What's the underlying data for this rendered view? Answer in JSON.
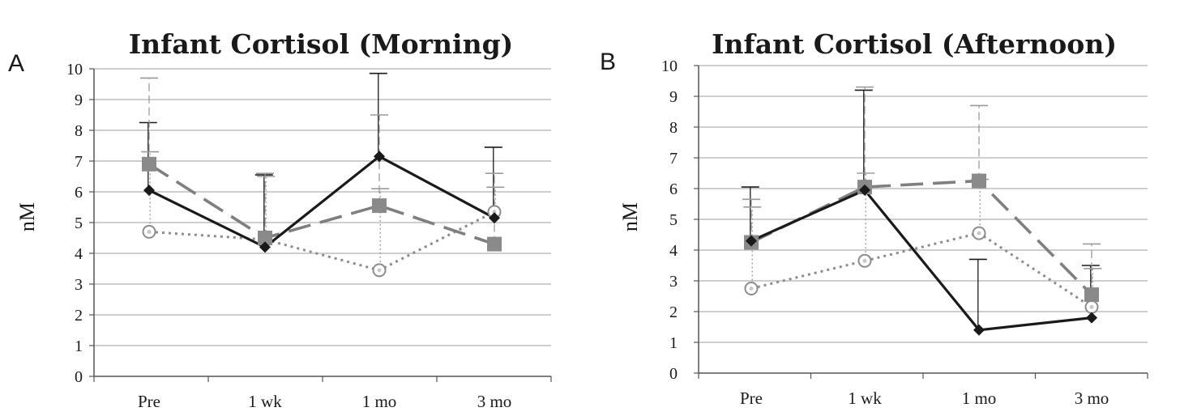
{
  "chart_data": [
    {
      "type": "line",
      "panel_letter": "A",
      "title": "Infant Cortisol (Morning)",
      "xlabel": "",
      "ylabel": "nM",
      "ylim": [
        0,
        10
      ],
      "yticks": [
        0,
        1,
        2,
        3,
        4,
        5,
        6,
        7,
        8,
        9,
        10
      ],
      "categories": [
        "Pre",
        "1 wk",
        "1 mo",
        "3 mo"
      ],
      "grid": true,
      "legend": "none",
      "series": [
        {
          "style": "solid-black-diamond",
          "color": "#1a1a1a",
          "values": [
            6.05,
            4.2,
            7.15,
            5.15
          ],
          "error_upper": [
            8.25,
            6.55,
            9.85,
            7.45
          ]
        },
        {
          "style": "dashed-gray-square",
          "color": "#7f7f7f",
          "values": [
            6.9,
            4.5,
            5.55,
            4.3
          ],
          "error_upper": [
            9.7,
            6.6,
            8.5,
            6.6
          ]
        },
        {
          "style": "dotted-gray-open-circle",
          "color": "#8c8c8c",
          "values": [
            4.7,
            4.45,
            3.45,
            5.35
          ],
          "error_upper": [
            7.3,
            6.5,
            6.1,
            6.15
          ]
        }
      ]
    },
    {
      "type": "line",
      "panel_letter": "B",
      "title": "Infant Cortisol (Afternoon)",
      "xlabel": "",
      "ylabel": "nM",
      "ylim": [
        0,
        10
      ],
      "yticks": [
        0,
        1,
        2,
        3,
        4,
        5,
        6,
        7,
        8,
        9,
        10
      ],
      "categories": [
        "Pre",
        "1 wk",
        "1 mo",
        "3 mo"
      ],
      "grid": true,
      "legend": "none",
      "series": [
        {
          "style": "solid-black-diamond",
          "color": "#1a1a1a",
          "values": [
            4.3,
            5.95,
            1.4,
            1.8
          ],
          "error_upper": [
            6.05,
            9.2,
            3.7,
            3.5
          ]
        },
        {
          "style": "dashed-gray-square",
          "color": "#7f7f7f",
          "values": [
            4.25,
            6.05,
            6.25,
            2.55
          ],
          "error_upper": [
            5.65,
            9.3,
            8.7,
            4.2
          ]
        },
        {
          "style": "dotted-gray-open-circle",
          "color": "#8c8c8c",
          "values": [
            2.75,
            3.65,
            4.55,
            2.15
          ],
          "error_upper": [
            5.4,
            6.5,
            6.3,
            3.4
          ]
        }
      ]
    }
  ]
}
